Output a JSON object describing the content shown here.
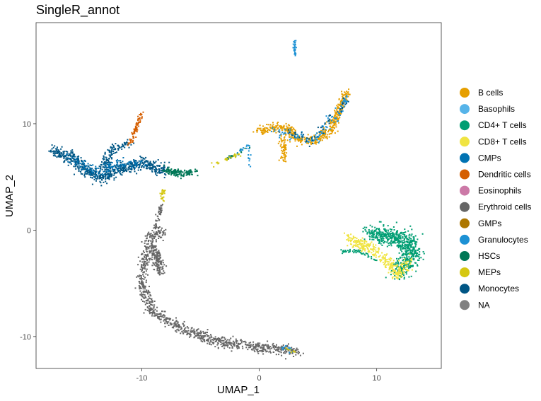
{
  "chart_data": {
    "type": "scatter",
    "title": "SingleR_annot",
    "xlabel": "UMAP_1",
    "ylabel": "UMAP_2",
    "xlim": [
      -19.0,
      15.5
    ],
    "ylim": [
      -13.0,
      19.5
    ],
    "x_ticks": [
      -10,
      0,
      10
    ],
    "x_tick_labels": [
      "-10",
      "0",
      "10"
    ],
    "y_ticks": [
      -10,
      0,
      10
    ],
    "y_tick_labels": [
      "-10",
      "0",
      "10"
    ],
    "grid": false,
    "legend_position": "right",
    "legend": [
      {
        "label": "B cells",
        "color": "#E69F00"
      },
      {
        "label": "Basophils",
        "color": "#56B4E9"
      },
      {
        "label": "CD4+ T cells",
        "color": "#009E73"
      },
      {
        "label": "CD8+ T cells",
        "color": "#F0E442"
      },
      {
        "label": "CMPs",
        "color": "#0072B2"
      },
      {
        "label": "Dendritic cells",
        "color": "#D55E00"
      },
      {
        "label": "Eosinophils",
        "color": "#CC79A7"
      },
      {
        "label": "Erythroid cells",
        "color": "#666666"
      },
      {
        "label": "GMPs",
        "color": "#AD7700"
      },
      {
        "label": "Granulocytes",
        "color": "#1C91D4"
      },
      {
        "label": "HSCs",
        "color": "#007756"
      },
      {
        "label": "MEPs",
        "color": "#D5C711"
      },
      {
        "label": "Monocytes",
        "color": "#005685"
      },
      {
        "label": "NA",
        "color": "#808080"
      }
    ],
    "clusters": [
      {
        "group": "Erythroid cells",
        "path": [
          [
            -8,
            -0.2
          ],
          [
            -9.3,
            -0.6
          ],
          [
            -9.8,
            -3.2
          ],
          [
            -10,
            -5
          ],
          [
            -9.2,
            -7.5
          ],
          [
            -8,
            -8.5
          ],
          [
            -6,
            -9.5
          ],
          [
            -4,
            -10.3
          ],
          [
            -2,
            -10.8
          ],
          [
            0,
            -11.1
          ],
          [
            2,
            -11.2
          ],
          [
            3.5,
            -11.5
          ]
        ],
        "spread": 0.45,
        "n": 900
      },
      {
        "group": "Erythroid cells",
        "path": [
          [
            -9,
            -1.5
          ],
          [
            -8.6,
            -3
          ],
          [
            -8.5,
            -4
          ]
        ],
        "spread": 0.45,
        "n": 160
      },
      {
        "group": "Erythroid cells",
        "path": [
          [
            -8.3,
            2.5
          ],
          [
            -8.6,
            1.2
          ],
          [
            -8.8,
            0.2
          ]
        ],
        "spread": 0.2,
        "n": 50
      },
      {
        "group": "Monocytes",
        "path": [
          [
            -17.5,
            7.4
          ],
          [
            -16,
            6.9
          ],
          [
            -14.5,
            5.5
          ],
          [
            -13.5,
            4.8
          ],
          [
            -12,
            5.8
          ],
          [
            -10,
            6.3
          ],
          [
            -8,
            5.6
          ]
        ],
        "spread": 0.5,
        "n": 650
      },
      {
        "group": "Monocytes",
        "path": [
          [
            -13.5,
            5.5
          ],
          [
            -12.5,
            7.6
          ],
          [
            -11,
            8.1
          ]
        ],
        "spread": 0.35,
        "n": 120
      },
      {
        "group": "CMPs",
        "path": [
          [
            -16,
            6.9
          ],
          [
            -14,
            5.4
          ],
          [
            -12,
            6.2
          ],
          [
            -10,
            6.1
          ]
        ],
        "spread": 0.5,
        "n": 130
      },
      {
        "group": "Dendritic cells",
        "path": [
          [
            -11,
            8.1
          ],
          [
            -10.5,
            9.5
          ],
          [
            -10,
            11
          ]
        ],
        "spread": 0.2,
        "n": 80
      },
      {
        "group": "HSCs",
        "path": [
          [
            -8,
            5.6
          ],
          [
            -6.5,
            5.3
          ],
          [
            -5.5,
            5.5
          ]
        ],
        "spread": 0.3,
        "n": 130
      },
      {
        "group": "HSCs",
        "path": [
          [
            -3,
            6.5
          ],
          [
            -2,
            7.1
          ],
          [
            -1,
            7.8
          ]
        ],
        "spread": 0.15,
        "n": 25
      },
      {
        "group": "MEPs",
        "path": [
          [
            -8.1,
            3.8
          ],
          [
            -8.3,
            3.2
          ],
          [
            -8.2,
            2.6
          ]
        ],
        "spread": 0.15,
        "n": 25
      },
      {
        "group": "MEPs",
        "path": [
          [
            -4,
            6.1
          ],
          [
            -2.5,
            6.8
          ],
          [
            -1.5,
            7.2
          ]
        ],
        "spread": 0.15,
        "n": 25
      },
      {
        "group": "Granulocytes",
        "path": [
          [
            -2,
            7.1
          ],
          [
            -1,
            8
          ],
          [
            -0.8,
            6
          ]
        ],
        "spread": 0.15,
        "n": 25
      },
      {
        "group": "B cells",
        "path": [
          [
            0,
            9.4
          ],
          [
            1.5,
            9.7
          ],
          [
            2.6,
            9.5
          ],
          [
            3.2,
            8.6
          ],
          [
            4.5,
            8.3
          ],
          [
            6,
            9.4
          ],
          [
            7,
            11.7
          ],
          [
            7.4,
            13
          ]
        ],
        "spread": 0.35,
        "n": 500
      },
      {
        "group": "B cells",
        "path": [
          [
            2,
            9
          ],
          [
            2.1,
            8
          ],
          [
            2.1,
            6.6
          ]
        ],
        "spread": 0.3,
        "n": 70
      },
      {
        "group": "Granulocytes",
        "path": [
          [
            1,
            9.2
          ],
          [
            2.5,
            9
          ],
          [
            4.5,
            8.4
          ],
          [
            6.5,
            10.5
          ],
          [
            7.6,
            12.6
          ]
        ],
        "spread": 0.4,
        "n": 120
      },
      {
        "group": "Monocytes",
        "path": [
          [
            2,
            9.6
          ],
          [
            4.5,
            8.3
          ],
          [
            7.6,
            12.5
          ]
        ],
        "spread": 0.35,
        "n": 50
      },
      {
        "group": "Granulocytes",
        "path": [
          [
            3,
            17.8
          ],
          [
            3.05,
            16.5
          ]
        ],
        "spread": 0.08,
        "n": 30
      },
      {
        "group": "CD4+ T cells",
        "path": [
          [
            9.5,
            -0.2
          ],
          [
            11,
            -0.6
          ],
          [
            12.5,
            -1
          ],
          [
            13.2,
            -2
          ],
          [
            12.5,
            -3.2
          ],
          [
            11.8,
            -4
          ]
        ],
        "spread": 0.8,
        "n": 650
      },
      {
        "group": "CD8+ T cells",
        "path": [
          [
            8,
            -1
          ],
          [
            9.3,
            -1.5
          ],
          [
            11,
            -3
          ],
          [
            11.8,
            -4.3
          ],
          [
            12.8,
            -3
          ]
        ],
        "spread": 0.5,
        "n": 280
      },
      {
        "group": "CD8+ T cells",
        "path": [
          [
            7.5,
            -0.5
          ],
          [
            8.3,
            -1.3
          ],
          [
            9,
            -2
          ]
        ],
        "spread": 0.3,
        "n": 50
      },
      {
        "group": "CD4+ T cells",
        "path": [
          [
            7,
            -2
          ],
          [
            8.5,
            -2
          ],
          [
            10,
            -2.8
          ]
        ],
        "spread": 0.15,
        "n": 50
      },
      {
        "group": "Granulocytes",
        "path": [
          [
            2,
            -11
          ],
          [
            2.8,
            -11.3
          ]
        ],
        "spread": 0.25,
        "n": 15
      },
      {
        "group": "MEPs",
        "path": [
          [
            2.2,
            -11.1
          ],
          [
            3,
            -11.4
          ]
        ],
        "spread": 0.2,
        "n": 10
      }
    ]
  }
}
